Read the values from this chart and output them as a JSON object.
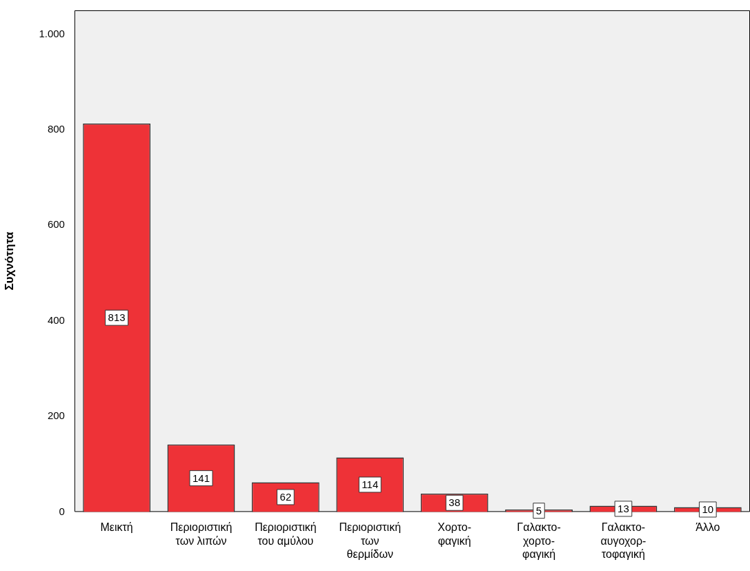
{
  "chart_data": {
    "type": "bar",
    "ylabel": "Συχνότητα",
    "categories": [
      "Μεικτή",
      "Περιοριστική\nτων λιπών",
      "Περιοριστική\nτου αμύλου",
      "Περιοριστική\nτων\nθερμίδων",
      "Χορτο-\nφαγική",
      "Γαλακτο-\nχορτο-\nφαγική",
      "Γαλακτο-\nαυγοχορ-\nτοφαγική",
      "Άλλο"
    ],
    "values": [
      813,
      141,
      62,
      114,
      38,
      5,
      13,
      10
    ],
    "color": "#ee3237",
    "ylim": [
      0,
      1050
    ],
    "yticks": [
      0,
      200,
      400,
      600,
      800,
      {
        "value": 1000,
        "label": "1.000"
      }
    ],
    "grid": false,
    "legend": false,
    "data_labels": true
  }
}
